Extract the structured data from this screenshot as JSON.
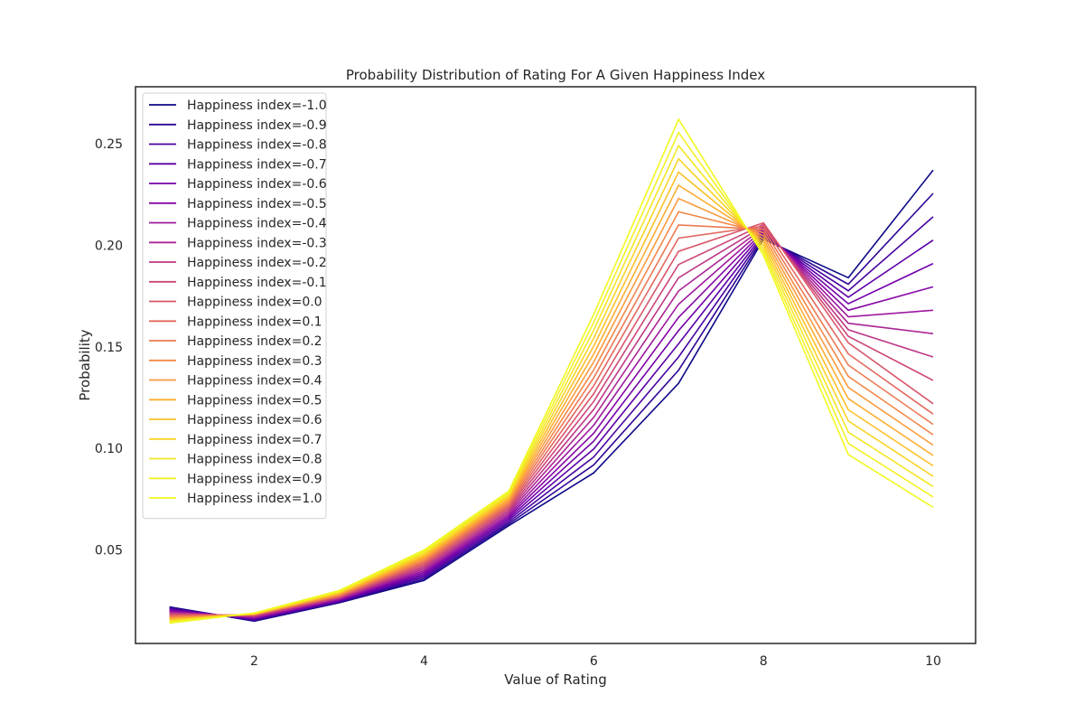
{
  "chart_data": {
    "type": "line",
    "title": "Probability Distribution of Rating For A Given Happiness Index",
    "xlabel": "Value of Rating",
    "ylabel": "Probability",
    "xlim": [
      0.6,
      10.5
    ],
    "ylim": [
      0.004,
      0.278
    ],
    "xticks": [
      2,
      4,
      6,
      8,
      10
    ],
    "yticks": [
      0.05,
      0.1,
      0.15,
      0.2,
      0.25
    ],
    "xtick_labels": [
      "2",
      "4",
      "6",
      "8",
      "10"
    ],
    "ytick_labels": [
      "0.05",
      "0.10",
      "0.15",
      "0.20",
      "0.25"
    ],
    "grid": false,
    "legend_position": "upper-left",
    "colormap": "plasma",
    "x": [
      1,
      2,
      3,
      4,
      5,
      6,
      7,
      8,
      9,
      10
    ],
    "series": [
      {
        "name": "Happiness index=-1.0",
        "color": "#0d0887",
        "values": [
          0.022,
          0.015,
          0.024,
          0.035,
          0.062,
          0.088,
          0.132,
          0.203,
          0.184,
          0.237
        ]
      },
      {
        "name": "Happiness index=-0.9",
        "color": "#2e0595",
        "values": [
          0.0216,
          0.0153,
          0.0243,
          0.0358,
          0.0629,
          0.0919,
          0.1385,
          0.2038,
          0.1808,
          0.2255
        ]
      },
      {
        "name": "Happiness index=-0.8",
        "color": "#46039f",
        "values": [
          0.0212,
          0.0156,
          0.0246,
          0.0366,
          0.0638,
          0.0958,
          0.145,
          0.2046,
          0.1776,
          0.214
        ]
      },
      {
        "name": "Happiness index=-0.7",
        "color": "#5c01a6",
        "values": [
          0.0208,
          0.0159,
          0.0249,
          0.0374,
          0.0647,
          0.0997,
          0.1515,
          0.2054,
          0.1744,
          0.2025
        ]
      },
      {
        "name": "Happiness index=-0.6",
        "color": "#7201a8",
        "values": [
          0.0204,
          0.0162,
          0.0252,
          0.0382,
          0.0656,
          0.1036,
          0.158,
          0.2062,
          0.1712,
          0.191
        ]
      },
      {
        "name": "Happiness index=-0.5",
        "color": "#8606a6",
        "values": [
          0.02,
          0.0165,
          0.0255,
          0.039,
          0.0665,
          0.1075,
          0.1645,
          0.207,
          0.168,
          0.1795
        ]
      },
      {
        "name": "Happiness index=-0.4",
        "color": "#9c179e",
        "values": [
          0.0196,
          0.0168,
          0.0258,
          0.0398,
          0.0674,
          0.1114,
          0.171,
          0.2078,
          0.1648,
          0.168
        ]
      },
      {
        "name": "Happiness index=-0.3",
        "color": "#ac2694",
        "values": [
          0.0192,
          0.0171,
          0.0261,
          0.0406,
          0.0683,
          0.1153,
          0.1775,
          0.2086,
          0.1616,
          0.1565
        ]
      },
      {
        "name": "Happiness index=-0.2",
        "color": "#bd3786",
        "values": [
          0.0188,
          0.0174,
          0.0264,
          0.0414,
          0.0692,
          0.1192,
          0.184,
          0.2094,
          0.1584,
          0.145
        ]
      },
      {
        "name": "Happiness index=-0.1",
        "color": "#cb4679",
        "values": [
          0.0184,
          0.0177,
          0.0267,
          0.0422,
          0.0701,
          0.1231,
          0.1905,
          0.2102,
          0.1552,
          0.1335
        ]
      },
      {
        "name": "Happiness index=0.0",
        "color": "#d8576b",
        "values": [
          0.018,
          0.018,
          0.027,
          0.043,
          0.071,
          0.127,
          0.197,
          0.211,
          0.152,
          0.122
        ]
      },
      {
        "name": "Happiness index=0.1",
        "color": "#e3685f",
        "values": [
          0.0176,
          0.0181,
          0.0273,
          0.0437,
          0.0718,
          0.1309,
          0.2035,
          0.2094,
          0.1465,
          0.1169
        ]
      },
      {
        "name": "Happiness index=0.2",
        "color": "#ed7953",
        "values": [
          0.0172,
          0.0182,
          0.0276,
          0.0444,
          0.0726,
          0.1348,
          0.21,
          0.2078,
          0.141,
          0.1118
        ]
      },
      {
        "name": "Happiness index=0.3",
        "color": "#f48849",
        "values": [
          0.0168,
          0.0183,
          0.0279,
          0.0451,
          0.0734,
          0.1387,
          0.2165,
          0.2062,
          0.1355,
          0.1067
        ]
      },
      {
        "name": "Happiness index=0.4",
        "color": "#fb9b3e",
        "values": [
          0.0164,
          0.0184,
          0.0282,
          0.0458,
          0.0742,
          0.1426,
          0.223,
          0.2046,
          0.13,
          0.1016
        ]
      },
      {
        "name": "Happiness index=0.5",
        "color": "#fdad32",
        "values": [
          0.016,
          0.0185,
          0.0285,
          0.0465,
          0.075,
          0.1465,
          0.2295,
          0.203,
          0.1245,
          0.0965
        ]
      },
      {
        "name": "Happiness index=0.6",
        "color": "#fdc029",
        "values": [
          0.0156,
          0.0186,
          0.0288,
          0.0472,
          0.0758,
          0.1504,
          0.236,
          0.2014,
          0.119,
          0.0914
        ]
      },
      {
        "name": "Happiness index=0.7",
        "color": "#f8d426",
        "values": [
          0.0152,
          0.0187,
          0.0291,
          0.0479,
          0.0766,
          0.1543,
          0.2425,
          0.1998,
          0.1135,
          0.0863
        ]
      },
      {
        "name": "Happiness index=0.8",
        "color": "#f3e626",
        "values": [
          0.0148,
          0.0188,
          0.0294,
          0.0486,
          0.0774,
          0.1582,
          0.249,
          0.1982,
          0.108,
          0.0812
        ]
      },
      {
        "name": "Happiness index=0.9",
        "color": "#f4f127",
        "values": [
          0.0144,
          0.0189,
          0.0297,
          0.0493,
          0.0782,
          0.1621,
          0.2555,
          0.1966,
          0.1025,
          0.0761
        ]
      },
      {
        "name": "Happiness index=1.0",
        "color": "#f0f921",
        "values": [
          0.014,
          0.019,
          0.03,
          0.05,
          0.079,
          0.166,
          0.262,
          0.195,
          0.097,
          0.071
        ]
      }
    ]
  }
}
